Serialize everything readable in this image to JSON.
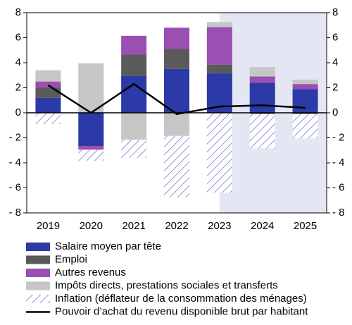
{
  "chart_data": {
    "type": "bar",
    "stacked": true,
    "categories": [
      "2019",
      "2020",
      "2021",
      "2022",
      "2023",
      "2024",
      "2025"
    ],
    "shade_from": "2023",
    "shade_color": "#e4e6f4",
    "series": [
      {
        "name": "Salaire moyen par tête",
        "color": "#2b3aa6",
        "values": [
          1.2,
          -2.65,
          2.95,
          3.5,
          3.15,
          2.4,
          1.9
        ]
      },
      {
        "name": "Emploi",
        "color": "#5a5a5a",
        "values": [
          0.8,
          0,
          1.7,
          1.6,
          0.7,
          -0.1,
          -0.1
        ]
      },
      {
        "name": "Autres revenus",
        "color": "#9a4fb2",
        "values": [
          0.5,
          -0.3,
          1.5,
          1.7,
          3.0,
          0.5,
          0.4
        ]
      },
      {
        "name": "Impôts directs, prestations sociales et transferts",
        "color": "#c6c6c6",
        "values": [
          0.9,
          3.95,
          -2.15,
          -1.85,
          0.4,
          0.75,
          0.35
        ]
      },
      {
        "name": "Inflation (déflateur de la consommation des ménages)",
        "color": "#4a55b5",
        "hatch": true,
        "values": [
          -0.9,
          -0.9,
          -1.45,
          -4.9,
          -6.4,
          -2.75,
          -1.95
        ]
      },
      {
        "name": "Pouvoir d’achat du revenu disponible brut par habitant",
        "color": "#000000",
        "type": "line",
        "values": [
          2.2,
          0,
          2.3,
          -0.1,
          0.5,
          0.6,
          0.4
        ]
      }
    ],
    "ylim": [
      -8,
      8
    ],
    "yticks": [
      {
        "value": -8,
        "label": "- 8"
      },
      {
        "value": -6,
        "label": "- 6"
      },
      {
        "value": -4,
        "label": "- 4"
      },
      {
        "value": -2,
        "label": "- 2"
      },
      0,
      2,
      4,
      6,
      8
    ],
    "y2lim": [
      -8,
      8
    ],
    "y2ticks": [
      {
        "value": -8,
        "label": "- 8"
      },
      {
        "value": -6,
        "label": "- 6"
      },
      {
        "value": -4,
        "label": "- 4"
      },
      {
        "value": -2,
        "label": "- 2"
      },
      0,
      2,
      4,
      6,
      8
    ]
  }
}
